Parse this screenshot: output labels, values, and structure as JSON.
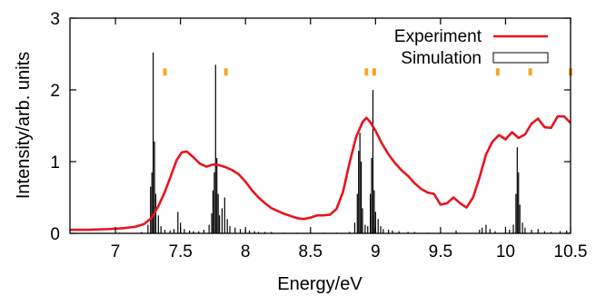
{
  "chart_data": {
    "type": "line",
    "xlabel": "Energy/eV",
    "ylabel": "Intensity/arb. units",
    "xlim": [
      6.65,
      10.5
    ],
    "ylim": [
      0,
      3
    ],
    "x_ticks": [
      "7",
      "7.5",
      "8",
      "8.5",
      "9",
      "9.5",
      "10",
      "10.5"
    ],
    "x_tick_values": [
      7,
      7.5,
      8,
      8.5,
      9,
      9.5,
      10,
      10.5
    ],
    "y_ticks": [
      "0",
      "1",
      "2",
      "3"
    ],
    "y_tick_values": [
      0,
      1,
      2,
      3
    ],
    "grid": false,
    "legend_position": "top-right",
    "legend": [
      {
        "label": "Experiment",
        "style": "line",
        "color": "#e8141c"
      },
      {
        "label": "Simulation",
        "style": "box",
        "color": "#000000"
      }
    ],
    "experiment": {
      "name": "Experiment",
      "color": "#e8141c",
      "points": [
        [
          6.65,
          0.05
        ],
        [
          6.8,
          0.05
        ],
        [
          6.95,
          0.06
        ],
        [
          7.05,
          0.07
        ],
        [
          7.15,
          0.09
        ],
        [
          7.22,
          0.13
        ],
        [
          7.28,
          0.22
        ],
        [
          7.33,
          0.38
        ],
        [
          7.38,
          0.58
        ],
        [
          7.43,
          0.82
        ],
        [
          7.47,
          1.02
        ],
        [
          7.51,
          1.13
        ],
        [
          7.55,
          1.14
        ],
        [
          7.6,
          1.06
        ],
        [
          7.65,
          0.97
        ],
        [
          7.7,
          0.93
        ],
        [
          7.75,
          0.96
        ],
        [
          7.8,
          0.95
        ],
        [
          7.85,
          0.92
        ],
        [
          7.9,
          0.88
        ],
        [
          7.95,
          0.82
        ],
        [
          8.0,
          0.72
        ],
        [
          8.05,
          0.6
        ],
        [
          8.1,
          0.5
        ],
        [
          8.15,
          0.42
        ],
        [
          8.2,
          0.35
        ],
        [
          8.3,
          0.27
        ],
        [
          8.4,
          0.21
        ],
        [
          8.45,
          0.2
        ],
        [
          8.5,
          0.22
        ],
        [
          8.55,
          0.25
        ],
        [
          8.6,
          0.25
        ],
        [
          8.65,
          0.26
        ],
        [
          8.7,
          0.34
        ],
        [
          8.75,
          0.58
        ],
        [
          8.8,
          0.98
        ],
        [
          8.85,
          1.34
        ],
        [
          8.9,
          1.55
        ],
        [
          8.93,
          1.61
        ],
        [
          8.96,
          1.55
        ],
        [
          9.0,
          1.43
        ],
        [
          9.05,
          1.25
        ],
        [
          9.1,
          1.1
        ],
        [
          9.15,
          0.98
        ],
        [
          9.2,
          0.88
        ],
        [
          9.25,
          0.8
        ],
        [
          9.3,
          0.7
        ],
        [
          9.35,
          0.62
        ],
        [
          9.4,
          0.57
        ],
        [
          9.45,
          0.55
        ],
        [
          9.5,
          0.4
        ],
        [
          9.55,
          0.42
        ],
        [
          9.6,
          0.5
        ],
        [
          9.65,
          0.42
        ],
        [
          9.7,
          0.36
        ],
        [
          9.75,
          0.5
        ],
        [
          9.8,
          0.78
        ],
        [
          9.85,
          1.1
        ],
        [
          9.9,
          1.28
        ],
        [
          9.95,
          1.37
        ],
        [
          10.0,
          1.31
        ],
        [
          10.05,
          1.41
        ],
        [
          10.1,
          1.33
        ],
        [
          10.15,
          1.38
        ],
        [
          10.2,
          1.53
        ],
        [
          10.25,
          1.6
        ],
        [
          10.3,
          1.48
        ],
        [
          10.35,
          1.47
        ],
        [
          10.4,
          1.63
        ],
        [
          10.45,
          1.63
        ],
        [
          10.5,
          1.54
        ]
      ]
    },
    "simulation": {
      "name": "Simulation",
      "color": "#000000",
      "sticks": [
        [
          7.0,
          0.01
        ],
        [
          7.03,
          0.01
        ],
        [
          7.2,
          0.02
        ],
        [
          7.25,
          0.12
        ],
        [
          7.27,
          0.65
        ],
        [
          7.28,
          0.85
        ],
        [
          7.29,
          2.52
        ],
        [
          7.3,
          1.28
        ],
        [
          7.31,
          0.55
        ],
        [
          7.33,
          0.25
        ],
        [
          7.35,
          0.1
        ],
        [
          7.38,
          0.05
        ],
        [
          7.42,
          0.04
        ],
        [
          7.45,
          0.06
        ],
        [
          7.48,
          0.3
        ],
        [
          7.5,
          0.15
        ],
        [
          7.53,
          0.06
        ],
        [
          7.57,
          0.04
        ],
        [
          7.6,
          0.03
        ],
        [
          7.64,
          0.03
        ],
        [
          7.68,
          0.05
        ],
        [
          7.72,
          0.12
        ],
        [
          7.74,
          0.28
        ],
        [
          7.75,
          0.6
        ],
        [
          7.76,
          0.85
        ],
        [
          7.77,
          2.35
        ],
        [
          7.78,
          1.05
        ],
        [
          7.79,
          0.55
        ],
        [
          7.8,
          0.25
        ],
        [
          7.82,
          0.35
        ],
        [
          7.84,
          0.5
        ],
        [
          7.86,
          0.2
        ],
        [
          7.88,
          0.1
        ],
        [
          7.92,
          0.08
        ],
        [
          7.96,
          0.06
        ],
        [
          8.0,
          0.05
        ],
        [
          8.03,
          0.04
        ],
        [
          8.07,
          0.03
        ],
        [
          8.1,
          0.02
        ],
        [
          8.15,
          0.02
        ],
        [
          8.2,
          0.02
        ],
        [
          8.3,
          0.01
        ],
        [
          8.4,
          0.01
        ],
        [
          8.5,
          0.01
        ],
        [
          8.6,
          0.01
        ],
        [
          8.7,
          0.01
        ],
        [
          8.8,
          0.02
        ],
        [
          8.84,
          0.15
        ],
        [
          8.86,
          0.55
        ],
        [
          8.87,
          1.15
        ],
        [
          8.88,
          1.4
        ],
        [
          8.89,
          1.0
        ],
        [
          8.9,
          0.35
        ],
        [
          8.92,
          0.12
        ],
        [
          8.94,
          0.1
        ],
        [
          8.96,
          0.55
        ],
        [
          8.97,
          1.05
        ],
        [
          8.98,
          2.0
        ],
        [
          8.99,
          0.6
        ],
        [
          9.0,
          0.3
        ],
        [
          9.02,
          0.2
        ],
        [
          9.04,
          0.1
        ],
        [
          9.06,
          0.06
        ],
        [
          9.1,
          0.05
        ],
        [
          9.13,
          0.04
        ],
        [
          9.18,
          0.03
        ],
        [
          9.25,
          0.02
        ],
        [
          9.3,
          0.02
        ],
        [
          9.4,
          0.01
        ],
        [
          9.5,
          0.01
        ],
        [
          9.62,
          0.04
        ],
        [
          9.8,
          0.05
        ],
        [
          9.82,
          0.08
        ],
        [
          9.85,
          0.12
        ],
        [
          9.88,
          0.06
        ],
        [
          9.92,
          0.03
        ],
        [
          10.0,
          0.02
        ],
        [
          10.03,
          0.05
        ],
        [
          10.06,
          0.12
        ],
        [
          10.08,
          0.55
        ],
        [
          10.09,
          1.2
        ],
        [
          10.1,
          0.85
        ],
        [
          10.11,
          0.4
        ],
        [
          10.13,
          0.15
        ],
        [
          10.15,
          0.08
        ],
        [
          10.2,
          0.05
        ],
        [
          10.25,
          0.06
        ],
        [
          10.3,
          0.03
        ],
        [
          10.35,
          0.02
        ],
        [
          10.42,
          0.03
        ],
        [
          10.47,
          0.04
        ]
      ]
    },
    "markers": {
      "color": "#f5a623",
      "y": 2.25,
      "x": [
        7.38,
        7.85,
        8.93,
        8.99,
        9.94,
        10.19,
        10.5
      ]
    }
  }
}
